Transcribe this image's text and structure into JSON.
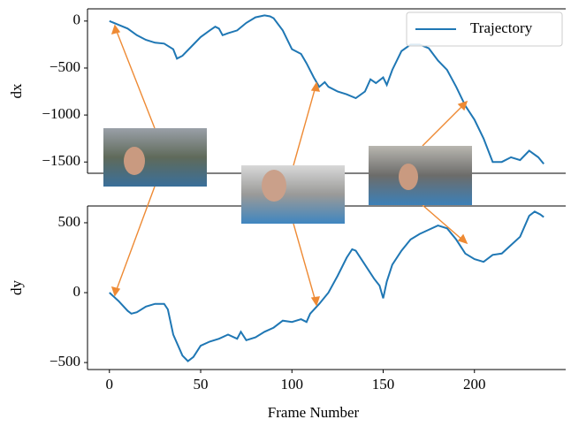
{
  "chart_data": [
    {
      "type": "line",
      "ylabel": "dx",
      "x": [
        0,
        5,
        10,
        15,
        20,
        25,
        30,
        35,
        37,
        40,
        45,
        50,
        55,
        58,
        60,
        62,
        65,
        70,
        75,
        80,
        85,
        88,
        90,
        95,
        100,
        105,
        108,
        112,
        115,
        118,
        120,
        125,
        130,
        135,
        140,
        143,
        146,
        150,
        152,
        155,
        160,
        165,
        170,
        175,
        180,
        185,
        190,
        195,
        200,
        205,
        210,
        215,
        220,
        225,
        230,
        235,
        238
      ],
      "series": [
        {
          "name": "Trajectory",
          "color": "#1f77b4",
          "values": [
            0,
            -40,
            -80,
            -150,
            -200,
            -230,
            -240,
            -300,
            -400,
            -370,
            -270,
            -170,
            -100,
            -60,
            -80,
            -150,
            -130,
            -100,
            -20,
            40,
            60,
            50,
            30,
            -100,
            -300,
            -350,
            -450,
            -600,
            -700,
            -650,
            -700,
            -750,
            -780,
            -820,
            -750,
            -620,
            -660,
            -600,
            -680,
            -520,
            -320,
            -250,
            -250,
            -290,
            -420,
            -520,
            -700,
            -900,
            -1050,
            -1250,
            -1500,
            -1500,
            -1450,
            -1480,
            -1380,
            -1450,
            -1520
          ]
        }
      ],
      "xlim": [
        -12,
        250
      ],
      "ylim": [
        130,
        -1620
      ],
      "yticks": [
        0,
        {
          "value": -500,
          "label": "−500"
        },
        {
          "value": -1000,
          "label": "−1000"
        },
        {
          "value": -1500,
          "label": "−1500"
        }
      ],
      "legend": "upper right"
    },
    {
      "type": "line",
      "ylabel": "dy",
      "xlabel": "Frame Number",
      "x": [
        0,
        5,
        10,
        12,
        15,
        20,
        25,
        30,
        32,
        35,
        40,
        43,
        46,
        50,
        55,
        60,
        65,
        70,
        72,
        75,
        80,
        85,
        90,
        95,
        100,
        105,
        108,
        110,
        115,
        120,
        125,
        130,
        133,
        135,
        140,
        145,
        148,
        150,
        152,
        155,
        160,
        165,
        170,
        175,
        180,
        185,
        190,
        195,
        200,
        205,
        210,
        215,
        220,
        225,
        230,
        233,
        236,
        238
      ],
      "series": [
        {
          "color": "#1f77b4",
          "values": [
            0,
            -60,
            -130,
            -150,
            -140,
            -100,
            -80,
            -80,
            -120,
            -300,
            -450,
            -490,
            -460,
            -380,
            -350,
            -330,
            -300,
            -330,
            -280,
            -340,
            -320,
            -280,
            -250,
            -200,
            -210,
            -190,
            -210,
            -150,
            -80,
            0,
            120,
            250,
            310,
            300,
            200,
            100,
            50,
            -40,
            80,
            200,
            300,
            380,
            420,
            450,
            480,
            460,
            380,
            280,
            240,
            220,
            270,
            280,
            340,
            400,
            550,
            580,
            560,
            540
          ]
        }
      ],
      "xlim": [
        -12,
        250
      ],
      "ylim": [
        620,
        -550
      ],
      "xticks": [
        0,
        50,
        100,
        150,
        200
      ],
      "yticks": [
        500,
        0,
        {
          "value": -500,
          "label": "−500"
        }
      ]
    }
  ]
}
